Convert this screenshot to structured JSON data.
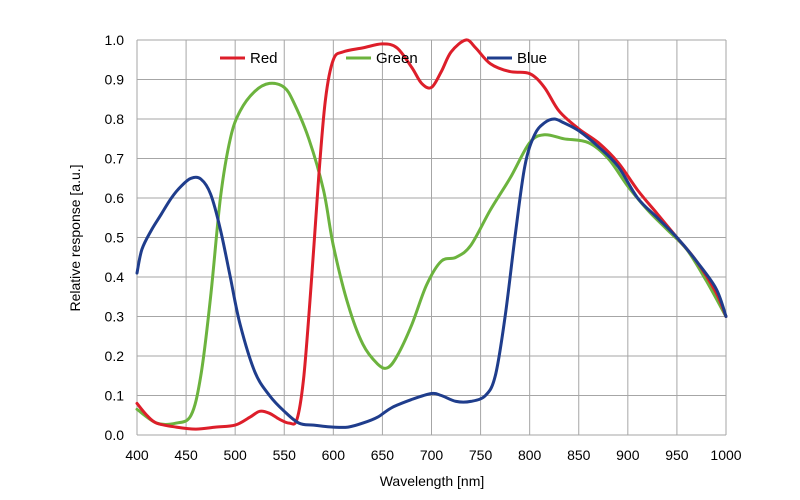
{
  "chart_data": {
    "type": "line",
    "title": "",
    "xlabel": "Wavelength [nm]",
    "ylabel": "Relative response [a.u.]",
    "xlim": [
      400,
      1000
    ],
    "ylim": [
      0.0,
      1.0
    ],
    "x_ticks": [
      "400",
      "450",
      "500",
      "550",
      "600",
      "650",
      "700",
      "750",
      "800",
      "850",
      "900",
      "950",
      "1000"
    ],
    "y_ticks": [
      "0.0",
      "0.1",
      "0.2",
      "0.3",
      "0.4",
      "0.5",
      "0.6",
      "0.7",
      "0.8",
      "0.9",
      "1.0"
    ],
    "grid": true,
    "legend_position": "top",
    "series": [
      {
        "name": "Red",
        "color": "#dd1e2a",
        "points": [
          [
            400,
            0.08
          ],
          [
            410,
            0.05
          ],
          [
            420,
            0.03
          ],
          [
            440,
            0.02
          ],
          [
            460,
            0.015
          ],
          [
            480,
            0.02
          ],
          [
            500,
            0.025
          ],
          [
            515,
            0.045
          ],
          [
            525,
            0.06
          ],
          [
            535,
            0.055
          ],
          [
            545,
            0.04
          ],
          [
            555,
            0.03
          ],
          [
            563,
            0.04
          ],
          [
            570,
            0.15
          ],
          [
            578,
            0.4
          ],
          [
            585,
            0.65
          ],
          [
            592,
            0.85
          ],
          [
            600,
            0.95
          ],
          [
            610,
            0.97
          ],
          [
            630,
            0.98
          ],
          [
            650,
            0.99
          ],
          [
            665,
            0.98
          ],
          [
            680,
            0.93
          ],
          [
            690,
            0.89
          ],
          [
            700,
            0.88
          ],
          [
            710,
            0.92
          ],
          [
            720,
            0.97
          ],
          [
            735,
            1.0
          ],
          [
            745,
            0.98
          ],
          [
            760,
            0.94
          ],
          [
            780,
            0.92
          ],
          [
            800,
            0.915
          ],
          [
            815,
            0.88
          ],
          [
            830,
            0.82
          ],
          [
            850,
            0.775
          ],
          [
            870,
            0.74
          ],
          [
            890,
            0.69
          ],
          [
            910,
            0.62
          ],
          [
            930,
            0.56
          ],
          [
            950,
            0.5
          ],
          [
            970,
            0.44
          ],
          [
            990,
            0.36
          ],
          [
            1000,
            0.3
          ]
        ]
      },
      {
        "name": "Green",
        "color": "#6cb33e",
        "points": [
          [
            400,
            0.065
          ],
          [
            420,
            0.03
          ],
          [
            440,
            0.03
          ],
          [
            455,
            0.05
          ],
          [
            465,
            0.15
          ],
          [
            475,
            0.35
          ],
          [
            485,
            0.6
          ],
          [
            495,
            0.75
          ],
          [
            505,
            0.82
          ],
          [
            520,
            0.87
          ],
          [
            535,
            0.89
          ],
          [
            550,
            0.88
          ],
          [
            560,
            0.84
          ],
          [
            575,
            0.75
          ],
          [
            590,
            0.62
          ],
          [
            600,
            0.48
          ],
          [
            615,
            0.33
          ],
          [
            630,
            0.23
          ],
          [
            645,
            0.18
          ],
          [
            655,
            0.17
          ],
          [
            665,
            0.2
          ],
          [
            680,
            0.28
          ],
          [
            695,
            0.38
          ],
          [
            710,
            0.44
          ],
          [
            725,
            0.45
          ],
          [
            740,
            0.48
          ],
          [
            760,
            0.57
          ],
          [
            780,
            0.65
          ],
          [
            800,
            0.74
          ],
          [
            815,
            0.76
          ],
          [
            835,
            0.75
          ],
          [
            860,
            0.74
          ],
          [
            880,
            0.7
          ],
          [
            900,
            0.63
          ],
          [
            920,
            0.57
          ],
          [
            940,
            0.52
          ],
          [
            960,
            0.47
          ],
          [
            980,
            0.39
          ],
          [
            1000,
            0.3
          ]
        ]
      },
      {
        "name": "Blue",
        "color": "#1f3d8c",
        "points": [
          [
            400,
            0.41
          ],
          [
            405,
            0.47
          ],
          [
            415,
            0.52
          ],
          [
            425,
            0.56
          ],
          [
            435,
            0.6
          ],
          [
            445,
            0.63
          ],
          [
            455,
            0.65
          ],
          [
            465,
            0.648
          ],
          [
            475,
            0.61
          ],
          [
            485,
            0.52
          ],
          [
            495,
            0.4
          ],
          [
            505,
            0.28
          ],
          [
            520,
            0.16
          ],
          [
            535,
            0.1
          ],
          [
            550,
            0.06
          ],
          [
            565,
            0.03
          ],
          [
            580,
            0.025
          ],
          [
            600,
            0.02
          ],
          [
            615,
            0.02
          ],
          [
            630,
            0.03
          ],
          [
            645,
            0.045
          ],
          [
            660,
            0.07
          ],
          [
            680,
            0.09
          ],
          [
            700,
            0.105
          ],
          [
            710,
            0.1
          ],
          [
            725,
            0.085
          ],
          [
            740,
            0.085
          ],
          [
            755,
            0.1
          ],
          [
            765,
            0.15
          ],
          [
            775,
            0.3
          ],
          [
            785,
            0.5
          ],
          [
            795,
            0.68
          ],
          [
            805,
            0.76
          ],
          [
            815,
            0.79
          ],
          [
            825,
            0.8
          ],
          [
            835,
            0.79
          ],
          [
            850,
            0.77
          ],
          [
            870,
            0.73
          ],
          [
            890,
            0.68
          ],
          [
            910,
            0.6
          ],
          [
            930,
            0.55
          ],
          [
            950,
            0.5
          ],
          [
            970,
            0.44
          ],
          [
            990,
            0.37
          ],
          [
            1000,
            0.3
          ]
        ]
      }
    ]
  }
}
